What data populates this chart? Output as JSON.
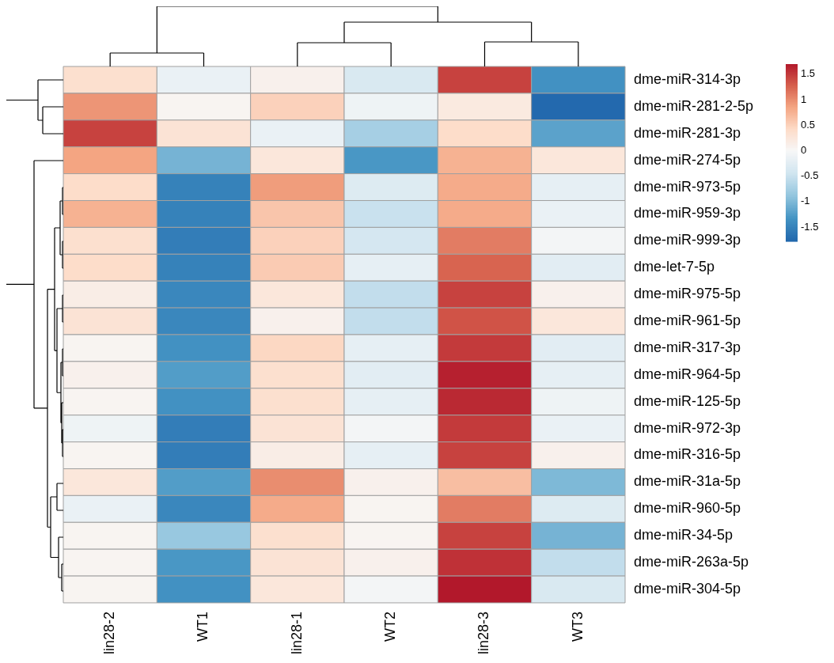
{
  "chart_data": {
    "type": "heatmap",
    "categories": [
      "lin28-2",
      "WT1",
      "lin28-1",
      "WT2",
      "lin28-3",
      "WT3"
    ],
    "y_categories": [
      "dme-miR-314-3p",
      "dme-miR-281-2-5p",
      "dme-miR-281-3p",
      "dme-miR-274-5p",
      "dme-miR-973-5p",
      "dme-miR-959-3p",
      "dme-miR-999-3p",
      "dme-let-7-5p",
      "dme-miR-975-5p",
      "dme-miR-961-5p",
      "dme-miR-317-3p",
      "dme-miR-964-5p",
      "dme-miR-125-5p",
      "dme-miR-972-3p",
      "dme-miR-316-5p",
      "dme-miR-31a-5p",
      "dme-miR-960-5p",
      "dme-miR-34-5p",
      "dme-miR-263a-5p",
      "dme-miR-304-5p"
    ],
    "cells": [
      [
        0.35,
        -0.15,
        0.1,
        -0.35,
        1.45,
        -1.35
      ],
      [
        0.95,
        0.05,
        0.5,
        -0.1,
        0.2,
        -1.75
      ],
      [
        1.45,
        0.3,
        -0.15,
        -0.75,
        0.4,
        -1.2
      ],
      [
        0.85,
        -1.05,
        0.25,
        -1.3,
        0.75,
        0.25
      ],
      [
        0.4,
        -1.5,
        0.9,
        -0.3,
        0.8,
        -0.2
      ],
      [
        0.75,
        -1.5,
        0.6,
        -0.5,
        0.8,
        -0.15
      ],
      [
        0.35,
        -1.55,
        0.5,
        -0.4,
        1.1,
        -0.05
      ],
      [
        0.4,
        -1.5,
        0.55,
        -0.2,
        1.25,
        -0.25
      ],
      [
        0.15,
        -1.45,
        0.25,
        -0.55,
        1.45,
        0.1
      ],
      [
        0.3,
        -1.45,
        0.1,
        -0.55,
        1.35,
        0.25
      ],
      [
        0.05,
        -1.35,
        0.45,
        -0.2,
        1.5,
        -0.25
      ],
      [
        0.1,
        -1.25,
        0.35,
        -0.25,
        1.65,
        -0.2
      ],
      [
        0.05,
        -1.35,
        0.35,
        -0.2,
        1.6,
        -0.1
      ],
      [
        -0.1,
        -1.55,
        0.3,
        -0.05,
        1.5,
        -0.15
      ],
      [
        0.05,
        -1.55,
        0.15,
        -0.2,
        1.45,
        0.1
      ],
      [
        0.25,
        -1.25,
        1.0,
        0.1,
        0.65,
        -1.0
      ],
      [
        -0.15,
        -1.45,
        0.8,
        0.05,
        1.1,
        -0.3
      ],
      [
        0.05,
        -0.85,
        0.35,
        0.05,
        1.45,
        -1.05
      ],
      [
        0.05,
        -1.3,
        0.3,
        0.1,
        1.55,
        -0.55
      ],
      [
        0.05,
        -1.35,
        0.25,
        -0.05,
        1.7,
        -0.35
      ]
    ],
    "clim": [
      -1.78,
      1.7
    ],
    "cticks": [
      -1.5,
      -1,
      -0.5,
      0,
      0.5,
      1,
      1.5
    ]
  }
}
